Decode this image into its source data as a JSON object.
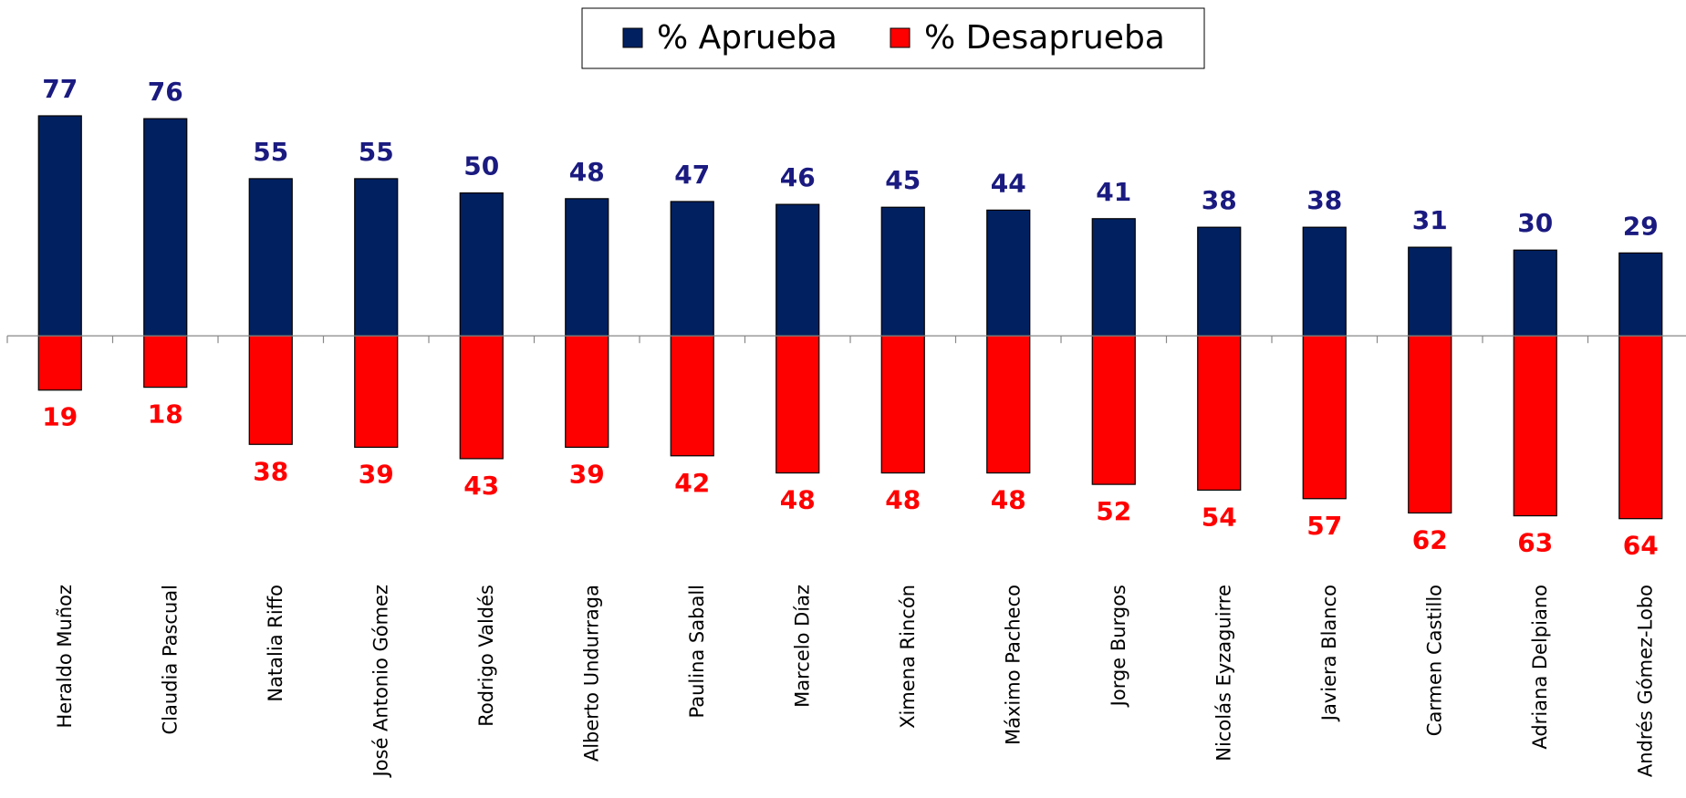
{
  "chart_data": {
    "type": "diverging_bar",
    "categories": [
      "Heraldo Muñoz",
      "Claudia Pascual",
      "Natalia Riffo",
      "José Antonio Gómez",
      "Rodrigo Valdés",
      "Alberto Undurraga",
      "Paulina Saball",
      "Marcelo Díaz",
      "Ximena Rincón",
      "Máximo Pacheco",
      "Jorge Burgos",
      "Nicolás Eyzaguirre",
      "Javiera Blanco",
      "Carmen Castillo",
      "Adriana Delpiano",
      "Andrés Gómez-Lobo"
    ],
    "series": [
      {
        "name": "% Aprueba",
        "color": "#002060",
        "label_color": "#1a1a80",
        "values": [
          77,
          76,
          55,
          55,
          50,
          48,
          47,
          46,
          45,
          44,
          41,
          38,
          38,
          31,
          30,
          29
        ]
      },
      {
        "name": "% Desaprueba",
        "color": "#ff0000",
        "label_color": "#ff0000",
        "values": [
          19,
          18,
          38,
          39,
          43,
          39,
          42,
          48,
          48,
          48,
          52,
          54,
          57,
          62,
          63,
          64
        ]
      }
    ],
    "ylim": [
      -70,
      80
    ],
    "legend": "top"
  }
}
